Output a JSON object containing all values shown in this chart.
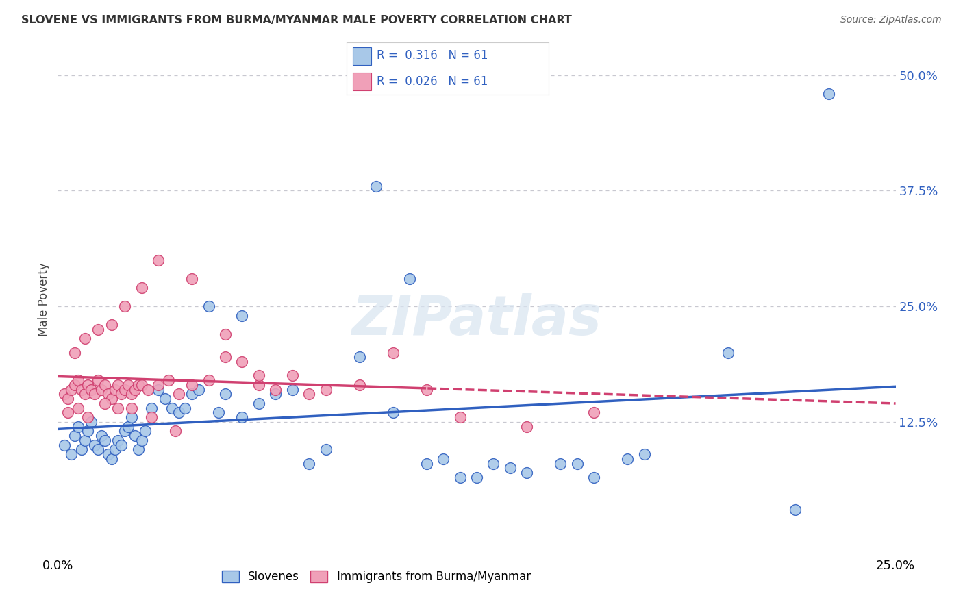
{
  "title": "SLOVENE VS IMMIGRANTS FROM BURMA/MYANMAR MALE POVERTY CORRELATION CHART",
  "source": "Source: ZipAtlas.com",
  "ylabel": "Male Poverty",
  "ytick_labels": [
    "12.5%",
    "25.0%",
    "37.5%",
    "50.0%"
  ],
  "ytick_values": [
    0.125,
    0.25,
    0.375,
    0.5
  ],
  "xlim": [
    0.0,
    0.25
  ],
  "ylim": [
    -0.02,
    0.535
  ],
  "color_blue": "#A8C8E8",
  "color_pink": "#F0A0B8",
  "line_blue": "#3060C0",
  "line_pink": "#D04070",
  "watermark_text": "ZIPatlas",
  "background_color": "#FFFFFF",
  "grid_color": "#C8C8D0",
  "legend_r1_text": "R =  0.316   N = 61",
  "legend_r2_text": "R =  0.026   N = 61",
  "slovene_x": [
    0.002,
    0.004,
    0.005,
    0.006,
    0.007,
    0.008,
    0.009,
    0.01,
    0.011,
    0.012,
    0.013,
    0.014,
    0.015,
    0.016,
    0.017,
    0.018,
    0.019,
    0.02,
    0.021,
    0.022,
    0.023,
    0.024,
    0.025,
    0.026,
    0.028,
    0.03,
    0.032,
    0.034,
    0.036,
    0.038,
    0.04,
    0.042,
    0.045,
    0.048,
    0.05,
    0.055,
    0.06,
    0.065,
    0.07,
    0.075,
    0.08,
    0.09,
    0.1,
    0.11,
    0.12,
    0.13,
    0.14,
    0.15,
    0.16,
    0.17,
    0.055,
    0.095,
    0.105,
    0.115,
    0.125,
    0.135,
    0.155,
    0.175,
    0.2,
    0.22,
    0.23
  ],
  "slovene_y": [
    0.1,
    0.09,
    0.11,
    0.12,
    0.095,
    0.105,
    0.115,
    0.125,
    0.1,
    0.095,
    0.11,
    0.105,
    0.09,
    0.085,
    0.095,
    0.105,
    0.1,
    0.115,
    0.12,
    0.13,
    0.11,
    0.095,
    0.105,
    0.115,
    0.14,
    0.16,
    0.15,
    0.14,
    0.135,
    0.14,
    0.155,
    0.16,
    0.25,
    0.135,
    0.155,
    0.13,
    0.145,
    0.155,
    0.16,
    0.08,
    0.095,
    0.195,
    0.135,
    0.08,
    0.065,
    0.08,
    0.07,
    0.08,
    0.065,
    0.085,
    0.24,
    0.38,
    0.28,
    0.085,
    0.065,
    0.075,
    0.08,
    0.09,
    0.2,
    0.03,
    0.48
  ],
  "burma_x": [
    0.002,
    0.003,
    0.004,
    0.005,
    0.006,
    0.007,
    0.008,
    0.009,
    0.01,
    0.011,
    0.012,
    0.013,
    0.014,
    0.015,
    0.016,
    0.017,
    0.018,
    0.019,
    0.02,
    0.021,
    0.022,
    0.023,
    0.024,
    0.025,
    0.027,
    0.03,
    0.033,
    0.036,
    0.04,
    0.045,
    0.05,
    0.055,
    0.06,
    0.065,
    0.07,
    0.075,
    0.08,
    0.09,
    0.1,
    0.11,
    0.005,
    0.008,
    0.012,
    0.016,
    0.02,
    0.025,
    0.03,
    0.04,
    0.05,
    0.06,
    0.003,
    0.006,
    0.009,
    0.014,
    0.018,
    0.022,
    0.028,
    0.035,
    0.12,
    0.14,
    0.16
  ],
  "burma_y": [
    0.155,
    0.15,
    0.16,
    0.165,
    0.17,
    0.16,
    0.155,
    0.165,
    0.16,
    0.155,
    0.17,
    0.16,
    0.165,
    0.155,
    0.15,
    0.16,
    0.165,
    0.155,
    0.16,
    0.165,
    0.155,
    0.16,
    0.165,
    0.165,
    0.16,
    0.165,
    0.17,
    0.155,
    0.165,
    0.17,
    0.195,
    0.19,
    0.165,
    0.16,
    0.175,
    0.155,
    0.16,
    0.165,
    0.2,
    0.16,
    0.2,
    0.215,
    0.225,
    0.23,
    0.25,
    0.27,
    0.3,
    0.28,
    0.22,
    0.175,
    0.135,
    0.14,
    0.13,
    0.145,
    0.14,
    0.14,
    0.13,
    0.115,
    0.13,
    0.12,
    0.135
  ]
}
